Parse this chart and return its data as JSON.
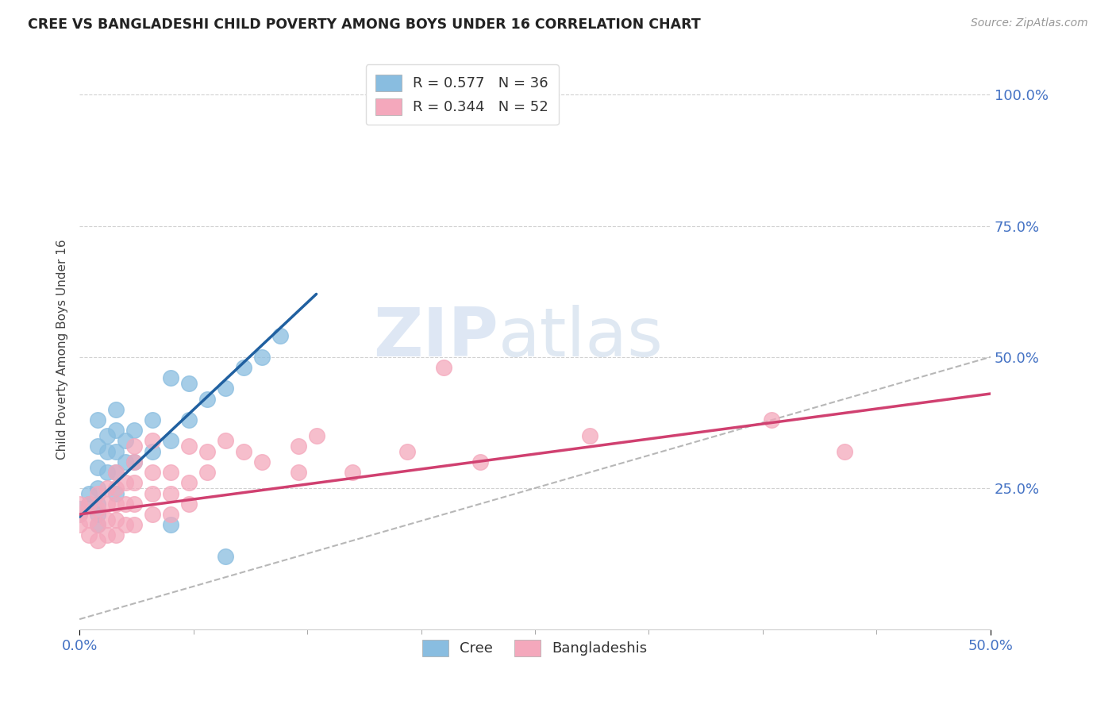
{
  "title": "CREE VS BANGLADESHI CHILD POVERTY AMONG BOYS UNDER 16 CORRELATION CHART",
  "source": "Source: ZipAtlas.com",
  "ylabel": "Child Poverty Among Boys Under 16",
  "xlim": [
    0.0,
    0.5
  ],
  "ylim": [
    -0.02,
    1.05
  ],
  "yticks": [
    0.25,
    0.5,
    0.75,
    1.0
  ],
  "ytick_labels": [
    "25.0%",
    "50.0%",
    "75.0%",
    "100.0%"
  ],
  "xtick_labels_show": [
    "0.0%",
    "50.0%"
  ],
  "xtick_vals_show": [
    0.0,
    0.5
  ],
  "legend_label_1": "R = 0.577   N = 36",
  "legend_label_2": "R = 0.344   N = 52",
  "legend_bottom_1": "Cree",
  "legend_bottom_2": "Bangladeshis",
  "cree_color": "#89bde0",
  "bangladeshi_color": "#f4a8bc",
  "cree_line_color": "#2060a0",
  "bangladeshi_line_color": "#d04070",
  "watermark_zip": "ZIP",
  "watermark_atlas": "atlas",
  "background_color": "#ffffff",
  "grid_color": "#cccccc",
  "axis_color": "#4472c4",
  "title_color": "#222222",
  "source_color": "#999999",
  "cree_scatter": [
    [
      0.0,
      0.2
    ],
    [
      0.0,
      0.21
    ],
    [
      0.005,
      0.22
    ],
    [
      0.005,
      0.24
    ],
    [
      0.01,
      0.2
    ],
    [
      0.01,
      0.22
    ],
    [
      0.01,
      0.25
    ],
    [
      0.01,
      0.29
    ],
    [
      0.01,
      0.33
    ],
    [
      0.01,
      0.38
    ],
    [
      0.015,
      0.28
    ],
    [
      0.015,
      0.32
    ],
    [
      0.015,
      0.35
    ],
    [
      0.02,
      0.24
    ],
    [
      0.02,
      0.28
    ],
    [
      0.02,
      0.32
    ],
    [
      0.02,
      0.36
    ],
    [
      0.02,
      0.4
    ],
    [
      0.025,
      0.3
    ],
    [
      0.025,
      0.34
    ],
    [
      0.03,
      0.3
    ],
    [
      0.03,
      0.36
    ],
    [
      0.04,
      0.32
    ],
    [
      0.04,
      0.38
    ],
    [
      0.05,
      0.34
    ],
    [
      0.05,
      0.46
    ],
    [
      0.06,
      0.38
    ],
    [
      0.06,
      0.45
    ],
    [
      0.07,
      0.42
    ],
    [
      0.08,
      0.44
    ],
    [
      0.09,
      0.48
    ],
    [
      0.1,
      0.5
    ],
    [
      0.11,
      0.54
    ],
    [
      0.01,
      0.18
    ],
    [
      0.05,
      0.18
    ],
    [
      0.08,
      0.12
    ]
  ],
  "bangladeshi_scatter": [
    [
      0.0,
      0.18
    ],
    [
      0.0,
      0.2
    ],
    [
      0.0,
      0.22
    ],
    [
      0.005,
      0.16
    ],
    [
      0.005,
      0.19
    ],
    [
      0.005,
      0.22
    ],
    [
      0.01,
      0.15
    ],
    [
      0.01,
      0.18
    ],
    [
      0.01,
      0.21
    ],
    [
      0.01,
      0.24
    ],
    [
      0.015,
      0.16
    ],
    [
      0.015,
      0.19
    ],
    [
      0.015,
      0.22
    ],
    [
      0.015,
      0.25
    ],
    [
      0.02,
      0.16
    ],
    [
      0.02,
      0.19
    ],
    [
      0.02,
      0.22
    ],
    [
      0.02,
      0.25
    ],
    [
      0.02,
      0.28
    ],
    [
      0.025,
      0.18
    ],
    [
      0.025,
      0.22
    ],
    [
      0.025,
      0.26
    ],
    [
      0.03,
      0.18
    ],
    [
      0.03,
      0.22
    ],
    [
      0.03,
      0.26
    ],
    [
      0.03,
      0.3
    ],
    [
      0.03,
      0.33
    ],
    [
      0.04,
      0.2
    ],
    [
      0.04,
      0.24
    ],
    [
      0.04,
      0.28
    ],
    [
      0.04,
      0.34
    ],
    [
      0.05,
      0.2
    ],
    [
      0.05,
      0.24
    ],
    [
      0.05,
      0.28
    ],
    [
      0.06,
      0.22
    ],
    [
      0.06,
      0.26
    ],
    [
      0.06,
      0.33
    ],
    [
      0.07,
      0.28
    ],
    [
      0.07,
      0.32
    ],
    [
      0.08,
      0.34
    ],
    [
      0.09,
      0.32
    ],
    [
      0.1,
      0.3
    ],
    [
      0.12,
      0.28
    ],
    [
      0.12,
      0.33
    ],
    [
      0.13,
      0.35
    ],
    [
      0.15,
      0.28
    ],
    [
      0.18,
      0.32
    ],
    [
      0.2,
      0.48
    ],
    [
      0.22,
      0.3
    ],
    [
      0.28,
      0.35
    ],
    [
      0.38,
      0.38
    ],
    [
      0.42,
      0.32
    ]
  ],
  "cree_trend_x": [
    0.0,
    0.13
  ],
  "cree_trend_y": [
    0.195,
    0.62
  ],
  "bangladeshi_trend_x": [
    0.0,
    0.5
  ],
  "bangladeshi_trend_y": [
    0.2,
    0.43
  ]
}
